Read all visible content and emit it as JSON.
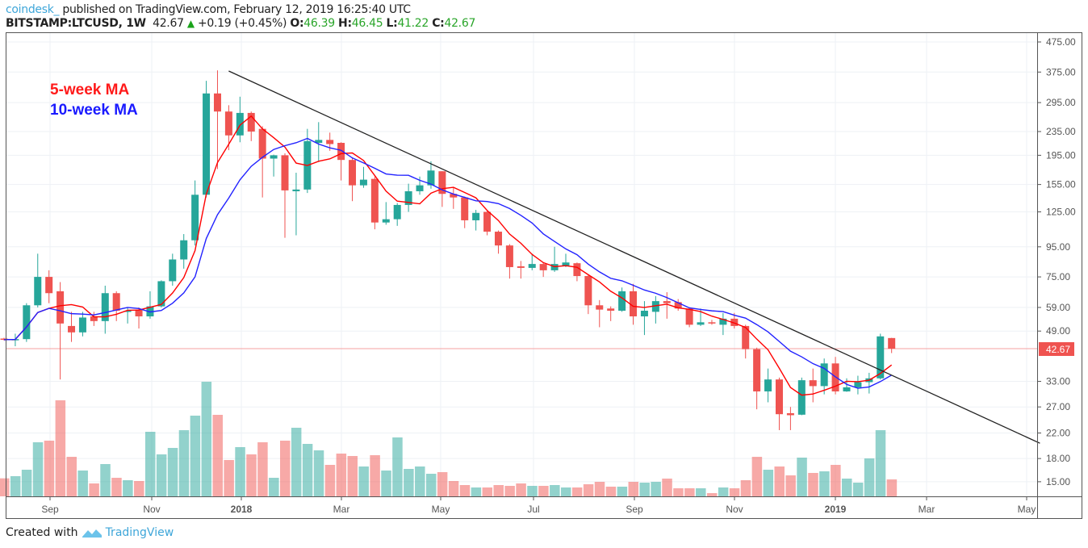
{
  "header": {
    "brand": "coindesk_",
    "published": "published on TradingView.com, February 12, 2019 16:25:40 UTC",
    "symbol": "BITSTAMP:LTCUSD, 1W",
    "last": "42.67",
    "change": "+0.19 (+0.45%)",
    "o_label": "O:",
    "o": "46.39",
    "h_label": "H:",
    "h": "46.45",
    "l_label": "L:",
    "l": "41.22",
    "c_label": "C:",
    "c": "42.67"
  },
  "footer": {
    "created_with": "Created with",
    "tradingview": "TradingView"
  },
  "chart_data": {
    "type": "candlestick",
    "interval": "1W",
    "y_scale": "log",
    "ylim": [
      13.5,
      520
    ],
    "grid": true,
    "y_ticks": [
      475,
      375,
      295,
      235,
      195,
      155,
      125,
      95,
      75,
      59,
      49,
      33,
      27,
      22,
      18,
      15
    ],
    "y_tick_labels": [
      "475.00",
      "375.00",
      "295.00",
      "235.00",
      "195.00",
      "155.00",
      "125.00",
      "95.00",
      "75.00",
      "59.00",
      "49.00",
      "33.00",
      "27.00",
      "22.00",
      "18.00",
      "15.00"
    ],
    "x_tick_labels": [
      "Sep",
      "Nov",
      "2018",
      "Mar",
      "May",
      "Jul",
      "Sep",
      "Nov",
      "2019",
      "Mar",
      "May"
    ],
    "x_tick_bold": [
      false,
      false,
      true,
      false,
      false,
      false,
      false,
      false,
      true,
      false,
      false
    ],
    "last_price_label": "42.67",
    "annotations": [
      {
        "text": "5-week MA",
        "color": "#ff1a1a"
      },
      {
        "text": "10-week MA",
        "color": "#1a1aff"
      }
    ],
    "ma_periods": [
      5,
      10
    ],
    "colors": {
      "up": "#26a69a",
      "down": "#ef5350",
      "ma5": "#ff0000",
      "ma10": "#2222ff",
      "trendline": "#222222"
    },
    "trendline": [
      {
        "candle": 20,
        "price": 378
      },
      {
        "candle": 92.2,
        "price": 20.3
      }
    ],
    "ohlc": [
      [
        46.2,
        46.5,
        45.5,
        45.8
      ],
      [
        45.8,
        48,
        43.5,
        46
      ],
      [
        46,
        61,
        45,
        60
      ],
      [
        60,
        90,
        59,
        75
      ],
      [
        75,
        79,
        61,
        66
      ],
      [
        67,
        72,
        33.5,
        52
      ],
      [
        51,
        57,
        45,
        48.5
      ],
      [
        48.5,
        57,
        47,
        54.5
      ],
      [
        55,
        57,
        51,
        53
      ],
      [
        53,
        70,
        48,
        66
      ],
      [
        66,
        67,
        53,
        57.5
      ],
      [
        57,
        59,
        52,
        57.5
      ],
      [
        58,
        59,
        50,
        55
      ],
      [
        55,
        67,
        54,
        59.5
      ],
      [
        59.5,
        73,
        59,
        72.5
      ],
      [
        72.5,
        90,
        70,
        86
      ],
      [
        86,
        105,
        80,
        100
      ],
      [
        100,
        160,
        96,
        143
      ],
      [
        143,
        350,
        140,
        317
      ],
      [
        317,
        380,
        175,
        275
      ],
      [
        275,
        289,
        203,
        228
      ],
      [
        228,
        309,
        216,
        272
      ],
      [
        272,
        275,
        218,
        235
      ],
      [
        240,
        245,
        140,
        190
      ],
      [
        190,
        196,
        165,
        195
      ],
      [
        195,
        198,
        102,
        148
      ],
      [
        147,
        170,
        104,
        149
      ],
      [
        149,
        240,
        145,
        218
      ],
      [
        215,
        253,
        185,
        220
      ],
      [
        220,
        233,
        202,
        213
      ],
      [
        215,
        216,
        160,
        188
      ],
      [
        188,
        192,
        136,
        154
      ],
      [
        154,
        178,
        151,
        161
      ],
      [
        162,
        165,
        109,
        115
      ],
      [
        115,
        135,
        113,
        118
      ],
      [
        118,
        134,
        112,
        132
      ],
      [
        132,
        156,
        125,
        147
      ],
      [
        147,
        165,
        143,
        154
      ],
      [
        154,
        186,
        150,
        173
      ],
      [
        172,
        172,
        130,
        144
      ],
      [
        144,
        152,
        128,
        140
      ],
      [
        140,
        141,
        110,
        117
      ],
      [
        117,
        127,
        108,
        124
      ],
      [
        125,
        126,
        104,
        107
      ],
      [
        107,
        108,
        90,
        96
      ],
      [
        96,
        97,
        74,
        81
      ],
      [
        81.5,
        85,
        74,
        80.5
      ],
      [
        80.5,
        90,
        79,
        83
      ],
      [
        83,
        84,
        75,
        79
      ],
      [
        79,
        95,
        78,
        83
      ],
      [
        82,
        90,
        81,
        84
      ],
      [
        83.5,
        84,
        72.5,
        75.5
      ],
      [
        75.5,
        76,
        56,
        60
      ],
      [
        60,
        62.5,
        50.5,
        58
      ],
      [
        58.5,
        59.5,
        53,
        57.5
      ],
      [
        57.5,
        69,
        57,
        67
      ],
      [
        67,
        71,
        51.5,
        55
      ],
      [
        55,
        62,
        47.5,
        57.5
      ],
      [
        57,
        64.5,
        52,
        62
      ],
      [
        62,
        66.5,
        54,
        61
      ],
      [
        61.5,
        63,
        57.5,
        58.5
      ],
      [
        58.5,
        59,
        50.5,
        51.5
      ],
      [
        51.5,
        58.5,
        51,
        52.5
      ],
      [
        52.5,
        53.5,
        51.5,
        52
      ],
      [
        51.5,
        56.5,
        47.5,
        54
      ],
      [
        54,
        56.5,
        50,
        51
      ],
      [
        51,
        51.5,
        39.5,
        42.5
      ],
      [
        42.5,
        43,
        26.5,
        30.5
      ],
      [
        30.5,
        36.5,
        28,
        33.5
      ],
      [
        33.5,
        34,
        22.5,
        25.5
      ],
      [
        25.7,
        27,
        22.5,
        25.3
      ],
      [
        25.4,
        34,
        25.3,
        33.3
      ],
      [
        33.3,
        36.5,
        28,
        31.8
      ],
      [
        31.8,
        39.5,
        29.8,
        38
      ],
      [
        38,
        40,
        29.8,
        30.5
      ],
      [
        30.5,
        33.8,
        30.4,
        31.5
      ],
      [
        31.5,
        34.5,
        29.8,
        32.8
      ],
      [
        32.8,
        35.3,
        30,
        33.8
      ],
      [
        33.8,
        48,
        33.5,
        47
      ],
      [
        46.39,
        46.45,
        41.22,
        42.67
      ]
    ],
    "volume_relative": [
      67,
      75,
      99,
      201,
      207,
      357,
      147,
      96,
      48,
      120,
      69,
      60,
      57,
      240,
      156,
      180,
      246,
      300,
      426,
      303,
      135,
      183,
      156,
      201,
      69,
      207,
      255,
      195,
      171,
      117,
      159,
      150,
      111,
      153,
      96,
      219,
      102,
      111,
      84,
      90,
      57,
      42,
      33,
      33,
      42,
      39,
      48,
      39,
      39,
      42,
      33,
      33,
      45,
      54,
      36,
      36,
      54,
      51,
      54,
      66,
      30,
      30,
      30,
      12,
      33,
      30,
      60,
      147,
      99,
      111,
      78,
      144,
      87,
      93,
      117,
      66,
      51,
      141,
      246,
      63
    ]
  }
}
